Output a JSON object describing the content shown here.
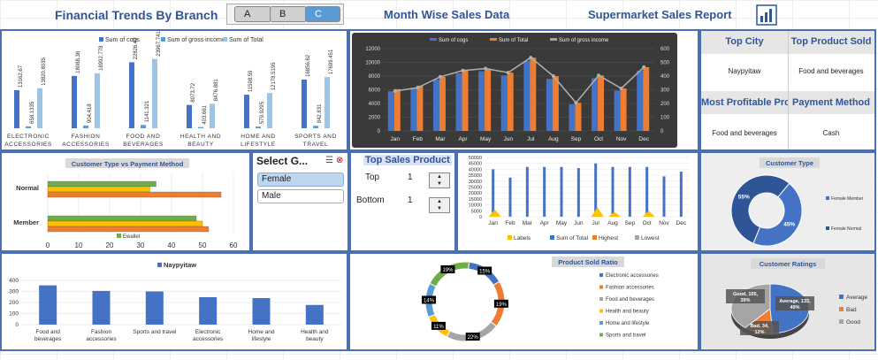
{
  "header": {
    "t1": "Financial Trends By Branch",
    "t2": "Month Wise Sales Data",
    "t3": "Supermarket Sales Report",
    "branches": [
      "A",
      "B",
      "C"
    ]
  },
  "branchChart": {
    "legend": [
      "Sum of cogs",
      "Sum of gross income",
      "Sum of Total"
    ],
    "categories": [
      "ELECTRONIC ACCESSORIES",
      "FASHION ACCESSORIES",
      "FOOD AND BEVERAGES",
      "HEALTH AND BEAUTY",
      "HOME AND LIFESTYLE",
      "SPORTS AND TRAVEL"
    ],
    "cogs": [
      13162.67,
      18088.36,
      22826.42,
      8073.72,
      11598.59,
      16856.62
    ],
    "gross": [
      658.1335,
      904.418,
      1141.321,
      403.661,
      579.9295,
      842.831
    ],
    "total": [
      13820.8035,
      18992.778,
      23967.741,
      8476.881,
      12178.5195,
      17699.451
    ]
  },
  "monthChart": {
    "legend": [
      "Sum of cogs",
      "Sum of Total",
      "Sum of gross income"
    ],
    "months": [
      "Jan",
      "Feb",
      "Mar",
      "Apr",
      "May",
      "Jun",
      "Jul",
      "Aug",
      "Sep",
      "Oct",
      "Nov",
      "Dec"
    ],
    "cogs": [
      5800,
      6300,
      7500,
      8400,
      8700,
      8100,
      10200,
      7600,
      3900,
      7700,
      5900,
      8800
    ],
    "total": [
      6100,
      6600,
      7900,
      8800,
      9100,
      8500,
      10700,
      8000,
      4100,
      8100,
      6200,
      9300
    ],
    "gross": [
      290,
      315,
      395,
      440,
      455,
      425,
      535,
      400,
      205,
      405,
      310,
      465
    ],
    "yticks": [
      "0",
      "2000",
      "4000",
      "6000",
      "8000",
      "10000",
      "12000"
    ],
    "y2ticks": [
      "0",
      "100",
      "200",
      "300",
      "400",
      "500",
      "600"
    ]
  },
  "kpis": {
    "city_label": "Top City",
    "city": "Naypyitaw",
    "product_label": "Top Product Sold",
    "product": "Food and beverages",
    "profit_label": "Most Profitable Product",
    "profit": "Food and beverages",
    "payment_label": "Payment Method",
    "payment": "Cash"
  },
  "custPay": {
    "title": "Customer Type vs Payment Method",
    "rows": [
      "Normal",
      "Member"
    ],
    "xticks": [
      "0",
      "10",
      "20",
      "30",
      "40",
      "50",
      "60"
    ],
    "legend": "Ewallet",
    "normal": [
      35,
      33,
      56
    ],
    "member": [
      48,
      50,
      52
    ]
  },
  "genderSlicer": {
    "title": "Select G...",
    "options": [
      "Female",
      "Male"
    ]
  },
  "topSales": {
    "title": "Top Sales Product",
    "top_label": "Top",
    "top_value": "1",
    "bottom_label": "Bottom",
    "bottom_value": "1"
  },
  "topSalesChart": {
    "months": [
      "Jan",
      "Feb",
      "Mar",
      "Apr",
      "May",
      "Jun",
      "Jul",
      "Aug",
      "Sep",
      "Oct",
      "Nov",
      "Dec"
    ],
    "values": [
      40000,
      33000,
      42000,
      42000,
      42000,
      41000,
      45000,
      42000,
      42000,
      42000,
      34000,
      38000
    ],
    "highest": [
      6000,
      0,
      0,
      0,
      0,
      0,
      8000,
      4000,
      0,
      5000,
      0,
      0
    ],
    "yticks": [
      "0",
      "5000",
      "10000",
      "15000",
      "20000",
      "25000",
      "30000",
      "35000",
      "40000",
      "45000",
      "50000"
    ],
    "legend": [
      "Labels",
      "Sum of Total",
      "Highest",
      "Lowest"
    ]
  },
  "customerType": {
    "title": "Customer Type",
    "legend": [
      "Female Member",
      "Female Normal"
    ],
    "values": [
      45,
      55
    ]
  },
  "naypyitaw": {
    "legend": "Naypyitaw",
    "categories": [
      "Food and beverages",
      "Fashion accessories",
      "Sports and travel",
      "Electronic accessories",
      "Home and lifestyle",
      "Health and beauty"
    ],
    "values": [
      355,
      305,
      300,
      248,
      240,
      178
    ],
    "yticks": [
      "0",
      "100",
      "200",
      "300",
      "400"
    ]
  },
  "productRatio": {
    "title": "Product Sold Ratio",
    "categories": [
      "Electronic accessories",
      "Fashion accessories",
      "Food and beverages",
      "Health and beauty",
      "Home and lifestyle",
      "Sports and travel"
    ],
    "values": [
      15,
      19,
      22,
      11,
      14,
      19
    ],
    "labels": [
      "15%",
      "19%",
      "22%",
      "11%",
      "14%",
      "19%"
    ],
    "colors": [
      "#4472c4",
      "#ed7d31",
      "#a5a5a5",
      "#ffc000",
      "#5b9bd5",
      "#70ad47"
    ]
  },
  "ratings": {
    "title": "Customer Ratings",
    "legend": [
      "Average",
      "Bad",
      "Good"
    ],
    "values": [
      49,
      12,
      39
    ],
    "labels": [
      "Average, 133, 49%",
      "Bad, 34, 12%",
      "Good, 105, 39%"
    ]
  }
}
